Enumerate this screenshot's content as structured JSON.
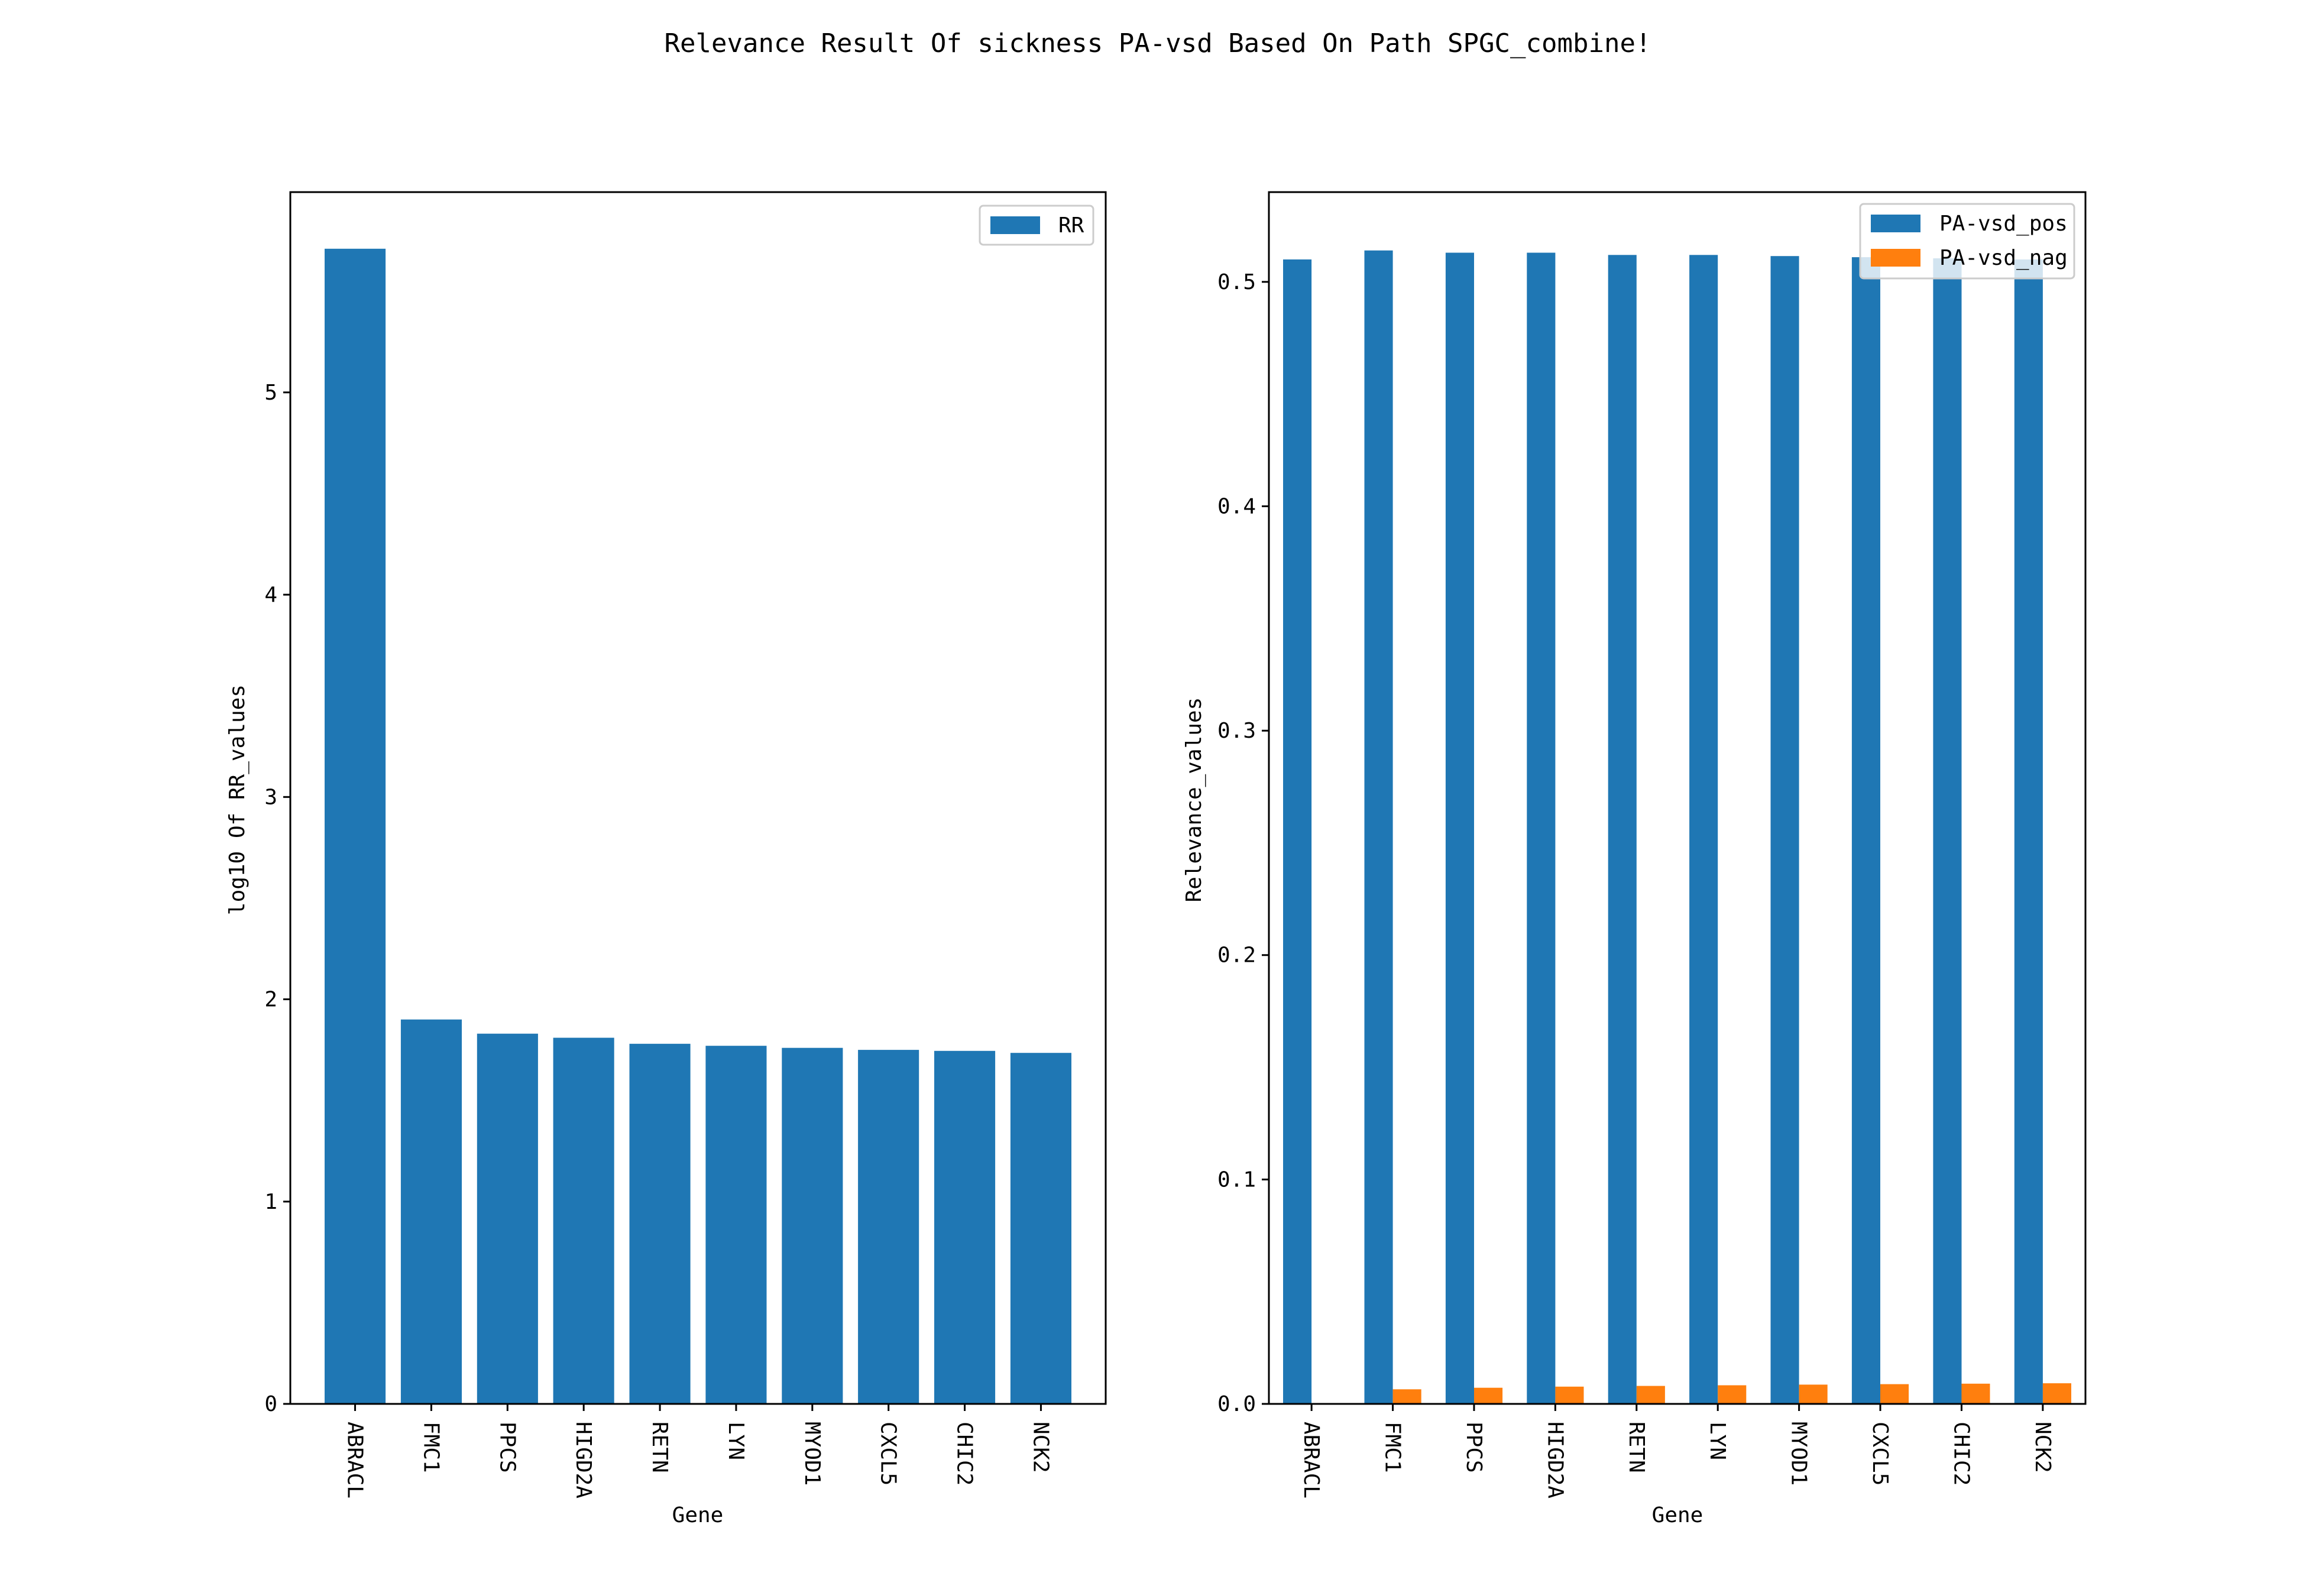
{
  "figure": {
    "title": "Relevance Result Of sickness PA-vsd Based On Path SPGC_combine!"
  },
  "chart_data": [
    {
      "type": "bar",
      "categories": [
        "ABRACL",
        "FMC1",
        "PPCS",
        "HIGD2A",
        "RETN",
        "LYN",
        "MYOD1",
        "CXCL5",
        "CHIC2",
        "NCK2"
      ],
      "series": [
        {
          "name": "RR",
          "color": "#1f77b4",
          "values": [
            5.71,
            1.9,
            1.83,
            1.81,
            1.78,
            1.77,
            1.76,
            1.75,
            1.745,
            1.735
          ]
        }
      ],
      "xlabel": "Gene",
      "ylabel": "log10 Of RR_values",
      "ylim": [
        0,
        5.99
      ],
      "yticks": [
        0,
        1,
        2,
        3,
        4,
        5
      ],
      "legend_position": "upper right",
      "grid": false
    },
    {
      "type": "bar",
      "categories": [
        "ABRACL",
        "FMC1",
        "PPCS",
        "HIGD2A",
        "RETN",
        "LYN",
        "MYOD1",
        "CXCL5",
        "CHIC2",
        "NCK2"
      ],
      "series": [
        {
          "name": "PA-vsd_pos",
          "color": "#1f77b4",
          "values": [
            0.51,
            0.514,
            0.513,
            0.513,
            0.512,
            0.512,
            0.5115,
            0.511,
            0.5105,
            0.51
          ]
        },
        {
          "name": "PA-vsd_nag",
          "color": "#ff7f0e",
          "values": [
            0.0,
            0.0065,
            0.0072,
            0.0077,
            0.008,
            0.0083,
            0.0086,
            0.0088,
            0.009,
            0.0092
          ]
        }
      ],
      "xlabel": "Gene",
      "ylabel": "Relevance_values",
      "ylim": [
        0,
        0.54
      ],
      "yticks": [
        0.0,
        0.1,
        0.2,
        0.3,
        0.4,
        0.5
      ],
      "ytick_labels": [
        "0.0",
        "0.1",
        "0.2",
        "0.3",
        "0.4",
        "0.5"
      ],
      "legend_position": "upper right",
      "grid": false
    }
  ]
}
